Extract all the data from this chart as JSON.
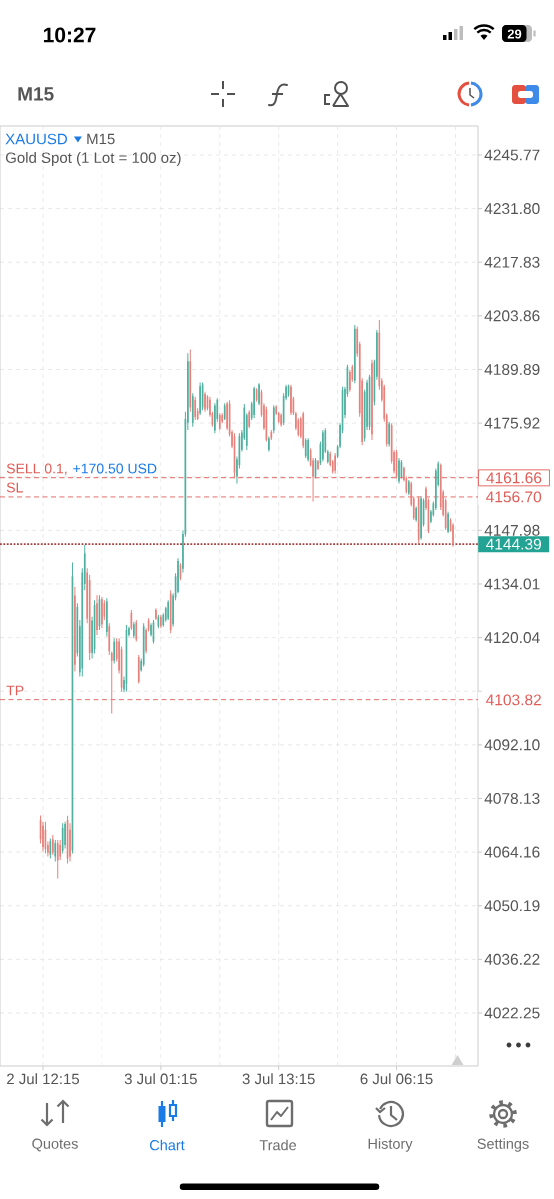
{
  "chart_data": {
    "type": "candlestick",
    "title": "XAUUSD",
    "subtitle": "Gold Spot (1 Lot = 100 oz)",
    "categories": [
      null,
      "2 Jul 12:15",
      null,
      null,
      null,
      null,
      null,
      null,
      null,
      null,
      null,
      null,
      null,
      null,
      null,
      null,
      null,
      null,
      null,
      null,
      null,
      null,
      null,
      null,
      null,
      null,
      null,
      null,
      null,
      null,
      null,
      null,
      null,
      null,
      null,
      null,
      null,
      null,
      null,
      null,
      null,
      null,
      null,
      null,
      null,
      null,
      null,
      null,
      null,
      "3 Jul 01:15",
      null,
      null,
      null,
      null,
      null,
      null,
      null,
      null,
      null,
      null,
      null,
      null,
      null,
      null,
      null,
      null,
      null,
      null,
      null,
      null,
      null,
      null,
      null,
      null,
      null,
      null,
      null,
      null,
      null,
      null,
      null,
      null,
      null,
      null,
      null,
      null,
      null,
      null,
      null,
      null,
      null,
      null,
      null,
      null,
      null,
      null,
      null,
      "3 Jul 13:15",
      null,
      null,
      null,
      null,
      null,
      null,
      null,
      null,
      null,
      null,
      null,
      null,
      null,
      null,
      null,
      null,
      null,
      null,
      null,
      null,
      null,
      null,
      null,
      null,
      null,
      null,
      null,
      null,
      null,
      null,
      null,
      null,
      null,
      null,
      null,
      null,
      null,
      null,
      null,
      null,
      null,
      null,
      null,
      null,
      null,
      null,
      null,
      "6 Jul 06:15",
      null,
      null,
      null,
      null,
      null,
      null,
      null,
      null,
      null,
      null,
      null,
      null,
      null,
      null,
      null,
      null,
      null,
      null,
      null,
      null,
      null,
      null,
      null
    ],
    "ohlc": [
      [
        4072.5,
        4073.7,
        4066.4,
        4067.5
      ],
      [
        4071.0,
        4072.1,
        4064.3,
        4065.5
      ],
      [
        4070.0,
        4072.1,
        4063.8,
        4065.0
      ],
      [
        4066.0,
        4066.9,
        4063.0,
        4064.0
      ],
      [
        4063.5,
        4067.7,
        4062.5,
        4067.0
      ],
      [
        4067.5,
        4068.6,
        4063.4,
        4064.0
      ],
      [
        4063.0,
        4067.3,
        4061.7,
        4066.5
      ],
      [
        4066.5,
        4067.3,
        4057.3,
        4062.0
      ],
      [
        4066.0,
        4067.3,
        4062.1,
        4063.0
      ],
      [
        4064.5,
        4071.7,
        4063.8,
        4070.5
      ],
      [
        4066.0,
        4072.1,
        4065.1,
        4071.5
      ],
      [
        4072.5,
        4073.6,
        4061.2,
        4062.5
      ],
      [
        4070.0,
        4071.7,
        4061.7,
        4063.0
      ],
      [
        4064.5,
        4139.6,
        4063.8,
        4136.0
      ],
      [
        4131.0,
        4133.3,
        4111.2,
        4113.0
      ],
      [
        4116.0,
        4129.0,
        4115.1,
        4128.0
      ],
      [
        4111.0,
        4124.6,
        4109.9,
        4123.0
      ],
      [
        4112.0,
        4138.1,
        4109.9,
        4137.0
      ],
      [
        4134.0,
        4144.2,
        4132.4,
        4142.0
      ],
      [
        4137.0,
        4138.1,
        4123.8,
        4125.0
      ],
      [
        4135.0,
        4136.4,
        4114.2,
        4116.0
      ],
      [
        4116.0,
        4125.5,
        4114.6,
        4124.5
      ],
      [
        4117.0,
        4129.8,
        4115.9,
        4128.5
      ],
      [
        4129.0,
        4131.1,
        4120.7,
        4122.0
      ],
      [
        4123.0,
        4131.1,
        4122.0,
        4130.0
      ],
      [
        4130.0,
        4130.7,
        4122.5,
        4123.5
      ],
      [
        4129.0,
        4129.8,
        4124.6,
        4125.5
      ],
      [
        4121.5,
        4130.3,
        4120.3,
        4129.5
      ],
      [
        4123.0,
        4123.8,
        4115.5,
        4116.5
      ],
      [
        4116.0,
        4116.4,
        4100.3,
        4114.0
      ],
      [
        4114.0,
        4119.9,
        4113.3,
        4119.0
      ],
      [
        4119.0,
        4119.9,
        4113.8,
        4114.5
      ],
      [
        4119.0,
        4119.9,
        4110.7,
        4111.5
      ],
      [
        4117.0,
        4117.7,
        4106.0,
        4107.0
      ],
      [
        4106.5,
        4109.9,
        4105.8,
        4109.0
      ],
      [
        4108.0,
        4123.3,
        4106.0,
        4122.0
      ],
      [
        4120.8,
        4122.9,
        4120.3,
        4122.5
      ],
      [
        4126.5,
        4127.2,
        4122.0,
        4122.5
      ],
      [
        4120.5,
        4124.2,
        4119.9,
        4123.5
      ],
      [
        4124.0,
        4124.6,
        4119.0,
        4119.5
      ],
      [
        4115.0,
        4115.5,
        4108.1,
        4108.5
      ],
      [
        4111.5,
        4114.6,
        4111.2,
        4114.0
      ],
      [
        4113.0,
        4123.8,
        4112.5,
        4123.0
      ],
      [
        4122.0,
        4122.5,
        4115.9,
        4116.5
      ],
      [
        4124.5,
        4125.1,
        4121.6,
        4122.0
      ],
      [
        4120.8,
        4123.8,
        4120.3,
        4123.3
      ],
      [
        4119.0,
        4124.6,
        4118.5,
        4124.0
      ],
      [
        4127.2,
        4127.7,
        4124.6,
        4125.0
      ],
      [
        4123.0,
        4125.9,
        4122.5,
        4125.5
      ],
      [
        4125.5,
        4125.9,
        4122.5,
        4123.0
      ],
      [
        4123.3,
        4126.4,
        4122.9,
        4126.0
      ],
      [
        4124.6,
        4128.1,
        4124.2,
        4127.7
      ],
      [
        4125.0,
        4129.8,
        4124.6,
        4129.3
      ],
      [
        4131.5,
        4132.4,
        4121.2,
        4122.0
      ],
      [
        4123.5,
        4131.6,
        4122.9,
        4131.0
      ],
      [
        4130.5,
        4136.8,
        4129.8,
        4136.0
      ],
      [
        4132.0,
        4140.7,
        4131.6,
        4140.0
      ],
      [
        4139.0,
        4139.4,
        4135.0,
        4135.5
      ],
      [
        4138.0,
        4148.0,
        4137.0,
        4147.0
      ],
      [
        4147.0,
        4178.9,
        4146.3,
        4177.0
      ],
      [
        4176.0,
        4194.1,
        4174.1,
        4192.0
      ],
      [
        4192.0,
        4195.1,
        4178.9,
        4180.0
      ],
      [
        4176.0,
        4183.7,
        4175.0,
        4183.0
      ],
      [
        4182.0,
        4182.8,
        4176.7,
        4177.5
      ],
      [
        4179.0,
        4179.8,
        4176.7,
        4177.0
      ],
      [
        4178.5,
        4186.5,
        4178.0,
        4185.5
      ],
      [
        4180.0,
        4186.5,
        4179.3,
        4186.0
      ],
      [
        4183.5,
        4184.1,
        4178.9,
        4179.5
      ],
      [
        4182.8,
        4183.2,
        4179.3,
        4179.8
      ],
      [
        4182.0,
        4182.8,
        4177.6,
        4178.0
      ],
      [
        4178.5,
        4178.9,
        4175.0,
        4175.5
      ],
      [
        4174.0,
        4181.1,
        4173.3,
        4180.5
      ],
      [
        4177.0,
        4182.4,
        4176.3,
        4182.0
      ],
      [
        4178.0,
        4178.5,
        4174.1,
        4174.5
      ],
      [
        4178.0,
        4178.5,
        4175.9,
        4176.3
      ],
      [
        4177.0,
        4181.1,
        4176.7,
        4180.5
      ],
      [
        4181.0,
        4181.5,
        4174.1,
        4174.6
      ],
      [
        4181.0,
        4181.9,
        4172.4,
        4173.0
      ],
      [
        4173.6,
        4174.1,
        4169.4,
        4169.8
      ],
      [
        4172.5,
        4173.3,
        4161.5,
        4163.0
      ],
      [
        4162.0,
        4167.2,
        4160.2,
        4166.5
      ],
      [
        4165.0,
        4173.3,
        4164.1,
        4172.5
      ],
      [
        4169.0,
        4174.1,
        4168.5,
        4173.5
      ],
      [
        4172.0,
        4180.9,
        4171.5,
        4180.0
      ],
      [
        4170.0,
        4178.5,
        4168.9,
        4178.0
      ],
      [
        4178.8,
        4179.3,
        4174.6,
        4175.0
      ],
      [
        4177.2,
        4181.5,
        4176.7,
        4181.0
      ],
      [
        4178.0,
        4185.4,
        4177.2,
        4185.0
      ],
      [
        4184.6,
        4185.0,
        4181.5,
        4182.0
      ],
      [
        4181.0,
        4186.3,
        4180.6,
        4186.0
      ],
      [
        4184.0,
        4184.6,
        4177.6,
        4178.0
      ],
      [
        4180.5,
        4181.1,
        4174.1,
        4174.6
      ],
      [
        4179.5,
        4180.2,
        4171.1,
        4171.5
      ],
      [
        4169.0,
        4172.4,
        4168.5,
        4172.0
      ],
      [
        4173.6,
        4174.1,
        4171.5,
        4172.0
      ],
      [
        4174.0,
        4180.6,
        4173.3,
        4180.0
      ],
      [
        4180.2,
        4180.6,
        4178.0,
        4178.4
      ],
      [
        4178.5,
        4178.9,
        4175.9,
        4176.3
      ],
      [
        4178.0,
        4178.5,
        4175.0,
        4175.5
      ],
      [
        4176.0,
        4183.7,
        4175.4,
        4183.0
      ],
      [
        4182.4,
        4185.9,
        4181.9,
        4185.4
      ],
      [
        4183.2,
        4185.9,
        4182.8,
        4185.6
      ],
      [
        4185.4,
        4185.9,
        4178.0,
        4178.6
      ],
      [
        4182.3,
        4182.8,
        4178.0,
        4178.5
      ],
      [
        4178.4,
        4178.9,
        4174.1,
        4174.6
      ],
      [
        4176.7,
        4177.2,
        4172.4,
        4172.9
      ],
      [
        4177.1,
        4177.6,
        4172.0,
        4172.4
      ],
      [
        4178.4,
        4178.9,
        4169.4,
        4170.0
      ],
      [
        4167.3,
        4172.0,
        4166.8,
        4171.5
      ],
      [
        4166.4,
        4172.0,
        4165.9,
        4171.5
      ],
      [
        4168.9,
        4169.4,
        4164.6,
        4165.0
      ],
      [
        4166.2,
        4166.8,
        4155.5,
        4162.0
      ],
      [
        4162.0,
        4166.8,
        4161.5,
        4166.3
      ],
      [
        4166.0,
        4166.3,
        4163.7,
        4164.0
      ],
      [
        4165.5,
        4171.1,
        4165.0,
        4170.5
      ],
      [
        4166.5,
        4174.1,
        4165.9,
        4173.5
      ],
      [
        4168.5,
        4174.6,
        4168.1,
        4174.0
      ],
      [
        4165.8,
        4168.9,
        4165.4,
        4168.5
      ],
      [
        4168.0,
        4168.5,
        4164.6,
        4165.0
      ],
      [
        4166.0,
        4166.3,
        4162.8,
        4163.3
      ],
      [
        4167.5,
        4168.1,
        4162.8,
        4163.5
      ],
      [
        4167.2,
        4170.2,
        4166.8,
        4169.8
      ],
      [
        4169.8,
        4175.9,
        4169.4,
        4175.4
      ],
      [
        4174.0,
        4185.4,
        4173.3,
        4184.5
      ],
      [
        4178.0,
        4185.4,
        4177.2,
        4184.8
      ],
      [
        4183.5,
        4191.1,
        4182.8,
        4190.5
      ],
      [
        4189.2,
        4189.8,
        4184.1,
        4184.6
      ],
      [
        4190.6,
        4191.1,
        4186.7,
        4187.2
      ],
      [
        4187.0,
        4201.5,
        4186.3,
        4200.5
      ],
      [
        4200.5,
        4201.1,
        4193.2,
        4194.0
      ],
      [
        4196.5,
        4197.1,
        4177.6,
        4178.5
      ],
      [
        4187.0,
        4187.6,
        4170.2,
        4171.0
      ],
      [
        4172.0,
        4184.6,
        4171.1,
        4184.0
      ],
      [
        4175.0,
        4187.2,
        4174.1,
        4186.5
      ],
      [
        4175.0,
        4188.5,
        4174.1,
        4188.0
      ],
      [
        4191.5,
        4192.4,
        4171.5,
        4173.0
      ],
      [
        4181.5,
        4192.4,
        4180.6,
        4192.0
      ],
      [
        4188.0,
        4200.2,
        4187.2,
        4199.5
      ],
      [
        4199.5,
        4202.8,
        4184.6,
        4185.5
      ],
      [
        4187.0,
        4187.6,
        4181.5,
        4182.0
      ],
      [
        4185.4,
        4185.9,
        4176.3,
        4177.0
      ],
      [
        4178.0,
        4178.5,
        4169.8,
        4170.5
      ],
      [
        4170.4,
        4176.3,
        4169.8,
        4175.8
      ],
      [
        4175.4,
        4175.9,
        4165.4,
        4166.0
      ],
      [
        4168.4,
        4168.9,
        4162.8,
        4163.4
      ],
      [
        4168.4,
        4168.9,
        4161.5,
        4162.0
      ],
      [
        4160.8,
        4166.8,
        4160.2,
        4166.2
      ],
      [
        4162.0,
        4166.3,
        4161.5,
        4165.8
      ],
      [
        4164.2,
        4164.6,
        4160.7,
        4161.1
      ],
      [
        4161.5,
        4162.0,
        4157.6,
        4158.0
      ],
      [
        4157.6,
        4161.1,
        4157.2,
        4160.7
      ],
      [
        4160.2,
        4160.7,
        4154.2,
        4154.7
      ],
      [
        4156.3,
        4156.8,
        4150.7,
        4151.2
      ],
      [
        4150.7,
        4154.2,
        4150.2,
        4153.8
      ],
      [
        4156.3,
        4156.8,
        4144.6,
        4145.5
      ],
      [
        4146.0,
        4156.8,
        4145.5,
        4156.3
      ],
      [
        4149.5,
        4156.3,
        4149.0,
        4155.8
      ],
      [
        4158.9,
        4159.4,
        4153.3,
        4153.8
      ],
      [
        4155.8,
        4156.3,
        4147.2,
        4147.7
      ],
      [
        4150.2,
        4153.3,
        4149.8,
        4152.9
      ],
      [
        4152.0,
        4155.5,
        4151.6,
        4155.0
      ],
      [
        4153.8,
        4164.1,
        4153.3,
        4163.5
      ],
      [
        4159.8,
        4165.9,
        4159.4,
        4165.4
      ],
      [
        4165.0,
        4165.4,
        4153.3,
        4154.0
      ],
      [
        4158.0,
        4158.5,
        4151.6,
        4152.0
      ],
      [
        4155.8,
        4156.3,
        4148.1,
        4148.6
      ],
      [
        4147.6,
        4152.8,
        4147.2,
        4152.3
      ],
      [
        4150.7,
        4151.1,
        4147.6,
        4148.0
      ],
      [
        4149.4,
        4149.8,
        4143.7,
        4144.39
      ]
    ],
    "colors": [
      "#e8807b",
      "#e8807b",
      "#e8807b",
      "#e8807b",
      "#4fb09f",
      "#e8807b",
      "#4fb09f",
      "#e8807b",
      "#e8807b",
      "#4fb09f",
      "#4fb09f",
      "#e8807b",
      "#e8807b",
      "#4fb09f",
      "#e8807b",
      "#4fb09f",
      "#4fb09f",
      "#4fb09f",
      "#4fb09f",
      "#e8807b",
      "#e8807b",
      "#4fb09f",
      "#4fb09f",
      "#e8807b",
      "#4fb09f",
      "#e8807b",
      "#e8807b",
      "#4fb09f",
      "#e8807b",
      "#e8807b",
      "#4fb09f",
      "#e8807b",
      "#e8807b",
      "#e8807b",
      "#4fb09f",
      "#4fb09f",
      "#4fb09f",
      "#e8807b",
      "#4fb09f",
      "#e8807b",
      "#e8807b",
      "#4fb09f",
      "#4fb09f",
      "#e8807b",
      "#e8807b",
      "#4fb09f",
      "#4fb09f",
      "#e8807b",
      "#4fb09f",
      "#e8807b",
      "#4fb09f",
      "#4fb09f",
      "#4fb09f",
      "#e8807b",
      "#4fb09f",
      "#4fb09f",
      "#4fb09f",
      "#e8807b",
      "#4fb09f",
      "#4fb09f",
      "#4fb09f",
      "#e8807b",
      "#4fb09f",
      "#e8807b",
      "#e8807b",
      "#4fb09f",
      "#4fb09f",
      "#e8807b",
      "#e8807b",
      "#e8807b",
      "#e8807b",
      "#4fb09f",
      "#4fb09f",
      "#e8807b",
      "#e8807b",
      "#4fb09f",
      "#e8807b",
      "#e8807b",
      "#e8807b",
      "#e8807b",
      "#4fb09f",
      "#4fb09f",
      "#4fb09f",
      "#4fb09f",
      "#4fb09f",
      "#e8807b",
      "#4fb09f",
      "#4fb09f",
      "#e8807b",
      "#4fb09f",
      "#e8807b",
      "#e8807b",
      "#e8807b",
      "#4fb09f",
      "#e8807b",
      "#4fb09f",
      "#e8807b",
      "#e8807b",
      "#e8807b",
      "#4fb09f",
      "#4fb09f",
      "#4fb09f",
      "#e8807b",
      "#e8807b",
      "#e8807b",
      "#e8807b",
      "#e8807b",
      "#e8807b",
      "#4fb09f",
      "#4fb09f",
      "#e8807b",
      "#e8807b",
      "#4fb09f",
      "#e8807b",
      "#4fb09f",
      "#4fb09f",
      "#4fb09f",
      "#4fb09f",
      "#e8807b",
      "#e8807b",
      "#e8807b",
      "#4fb09f",
      "#4fb09f",
      "#4fb09f",
      "#4fb09f",
      "#4fb09f",
      "#e8807b",
      "#e8807b",
      "#4fb09f",
      "#e8807b",
      "#e8807b",
      "#e8807b",
      "#4fb09f",
      "#4fb09f",
      "#4fb09f",
      "#e8807b",
      "#4fb09f",
      "#4fb09f",
      "#e8807b",
      "#e8807b",
      "#e8807b",
      "#e8807b",
      "#4fb09f",
      "#e8807b",
      "#e8807b",
      "#e8807b",
      "#4fb09f",
      "#4fb09f",
      "#e8807b",
      "#e8807b",
      "#4fb09f",
      "#e8807b",
      "#e8807b",
      "#4fb09f",
      "#e8807b",
      "#4fb09f",
      "#4fb09f",
      "#e8807b",
      "#e8807b",
      "#4fb09f",
      "#4fb09f",
      "#4fb09f",
      "#4fb09f",
      "#e8807b",
      "#e8807b",
      "#e8807b",
      "#4fb09f",
      "#e8807b",
      "#e8807b"
    ],
    "ylim": [
      4008.44,
      4253.32
    ],
    "yticks": [
      4022.25,
      4036.22,
      4050.19,
      4064.16,
      4078.13,
      {
        "value": 4092.1,
        "label": "4092.10"
      },
      {
        "value": 4106.07,
        "label": null
      },
      4120.04,
      4134.01,
      4147.98,
      {
        "value": 4161.95,
        "label": null
      },
      4175.92,
      4189.89,
      4203.86,
      4217.83,
      {
        "value": 4231.8,
        "label": "4231.80"
      },
      4245.77
    ],
    "grid": true,
    "ref_lines": [
      {
        "axis": "y",
        "value": 4161.66,
        "label": "SELL 0.1,",
        "color": "#e05c57",
        "line_style": "dashed"
      },
      {
        "axis": "y",
        "value": 4156.7,
        "label": "SL",
        "color": "#e05c57",
        "line_style": "dashed"
      },
      {
        "axis": "y",
        "value": 4103.82,
        "label": "TP",
        "color": "#e05c57",
        "line_style": "dashed"
      },
      {
        "axis": "y",
        "value": 4144.39,
        "color": "#a63c3a",
        "line_style": "dotted"
      }
    ],
    "annotations": [
      "10:27",
      "29",
      "M15",
      "M15",
      "+170.50 USD",
      "Quotes",
      "Chart",
      "Trade",
      "History",
      "Settings",
      "4161.66",
      "4156.70",
      "4144.39",
      "4103.82"
    ]
  }
}
